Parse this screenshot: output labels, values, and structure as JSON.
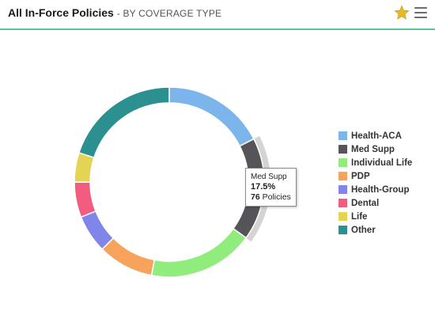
{
  "header": {
    "title": "All In-Force Policies",
    "subtitle": "- BY COVERAGE TYPE",
    "star_icon": "star-icon",
    "menu_icon": "menu-icon",
    "accent_color": "#5cc3a2",
    "star_color": "#e8b828"
  },
  "tooltip": {
    "category": "Med Supp",
    "percent": "17.5%",
    "count": "76",
    "count_suffix": "Policies"
  },
  "chart_data": {
    "type": "pie",
    "subtype": "donut",
    "highlighted": "Med Supp",
    "legend_position": "right",
    "slices": [
      {
        "name": "Health-ACA",
        "value": 17.5,
        "color": "#7cb5ec"
      },
      {
        "name": "Med Supp",
        "value": 17.5,
        "color": "#555458"
      },
      {
        "name": "Individual Life",
        "value": 18.0,
        "color": "#90ed7d"
      },
      {
        "name": "PDP",
        "value": 9.5,
        "color": "#f7a35c"
      },
      {
        "name": "Health-Group",
        "value": 6.5,
        "color": "#8085e9"
      },
      {
        "name": "Dental",
        "value": 6.0,
        "color": "#f15c80"
      },
      {
        "name": "Life",
        "value": 5.0,
        "color": "#e4d354"
      },
      {
        "name": "Other",
        "value": 20.0,
        "color": "#2b908f"
      }
    ]
  }
}
